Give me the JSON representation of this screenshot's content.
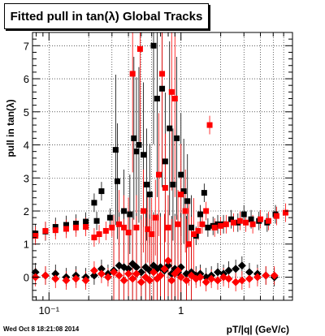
{
  "title": "Fitted pull in tan(λ)  Global Tracks",
  "timestamp": "Wed Oct  8 18:21:08 2014",
  "chart_data": {
    "type": "scatter",
    "xlabel": "pT/|q| (GeV/c)",
    "ylabel": "pull in tan(λ)",
    "xscale": "log",
    "xlim": [
      0.075,
      7.0
    ],
    "ylim": [
      -0.7,
      7.4
    ],
    "grid": true,
    "x_tick_labels": [
      "10⁻¹",
      "1"
    ],
    "y_tick_labels": [
      "0",
      "1",
      "2",
      "3",
      "4",
      "5",
      "6",
      "7"
    ],
    "colors": {
      "black_series": "#000000",
      "red_series": "#ff0000"
    },
    "series": [
      {
        "marker": "square",
        "color": "#000000",
        "values": [
          [
            0.079,
            1.32
          ],
          [
            0.094,
            1.38
          ],
          [
            0.112,
            1.52
          ],
          [
            0.135,
            1.58
          ],
          [
            0.16,
            1.62
          ],
          [
            0.19,
            1.68
          ],
          [
            0.22,
            2.25
          ],
          [
            0.23,
            1.7
          ],
          [
            0.25,
            2.6
          ],
          [
            0.29,
            1.8
          ],
          [
            0.32,
            3.85
          ],
          [
            0.33,
            2.9
          ],
          [
            0.37,
            2.0
          ],
          [
            0.41,
            1.9
          ],
          [
            0.44,
            4.2
          ],
          [
            0.46,
            3.8
          ],
          [
            0.48,
            4.0
          ],
          [
            0.52,
            3.7
          ],
          [
            0.55,
            2.8
          ],
          [
            0.58,
            2.5
          ],
          [
            0.62,
            7.0
          ],
          [
            0.66,
            5.4
          ],
          [
            0.72,
            5.7
          ],
          [
            0.76,
            3.5
          ],
          [
            0.82,
            4.5
          ],
          [
            0.87,
            2.8
          ],
          [
            0.93,
            4.2
          ],
          [
            1.0,
            3.1
          ],
          [
            1.05,
            2.6
          ],
          [
            1.12,
            2.3
          ],
          [
            1.2,
            1.5
          ],
          [
            1.3,
            1.25
          ],
          [
            1.4,
            1.9
          ],
          [
            1.5,
            2.55
          ],
          [
            1.6,
            1.5
          ],
          [
            1.75,
            1.55
          ],
          [
            1.9,
            1.6
          ],
          [
            2.1,
            1.6
          ],
          [
            2.4,
            1.75
          ],
          [
            2.7,
            1.65
          ],
          [
            3.0,
            1.9
          ],
          [
            3.4,
            1.75
          ],
          [
            3.9,
            1.7
          ],
          [
            4.5,
            1.65
          ],
          [
            5.2,
            1.9
          ]
        ]
      },
      {
        "marker": "square",
        "color": "#ff0000",
        "values": [
          [
            0.079,
            1.25
          ],
          [
            0.094,
            1.4
          ],
          [
            0.112,
            1.42
          ],
          [
            0.135,
            1.46
          ],
          [
            0.16,
            1.5
          ],
          [
            0.19,
            1.52
          ],
          [
            0.22,
            1.2
          ],
          [
            0.24,
            1.3
          ],
          [
            0.27,
            1.4
          ],
          [
            0.3,
            1.5
          ],
          [
            0.34,
            1.6
          ],
          [
            0.37,
            1.5
          ],
          [
            0.4,
            1.35
          ],
          [
            0.43,
            6.15
          ],
          [
            0.46,
            1.5
          ],
          [
            0.49,
            6.9
          ],
          [
            0.52,
            2.0
          ],
          [
            0.56,
            1.45
          ],
          [
            0.6,
            1.3
          ],
          [
            0.64,
            1.8
          ],
          [
            0.68,
            3.1
          ],
          [
            0.72,
            6.15
          ],
          [
            0.76,
            2.7
          ],
          [
            0.8,
            1.5
          ],
          [
            0.85,
            5.6
          ],
          [
            0.9,
            5.4
          ],
          [
            0.95,
            1.6
          ],
          [
            1.0,
            2.5
          ],
          [
            1.08,
            2.0
          ],
          [
            1.15,
            1.0
          ],
          [
            1.25,
            1.3
          ],
          [
            1.35,
            1.4
          ],
          [
            1.45,
            1.6
          ],
          [
            1.55,
            2.0
          ],
          [
            1.65,
            4.6
          ],
          [
            1.8,
            1.5
          ],
          [
            2.0,
            1.55
          ],
          [
            2.2,
            1.6
          ],
          [
            2.5,
            1.65
          ],
          [
            2.8,
            1.7
          ],
          [
            3.1,
            1.65
          ],
          [
            3.5,
            1.6
          ],
          [
            4.0,
            1.75
          ],
          [
            4.6,
            1.7
          ],
          [
            5.3,
            1.85
          ],
          [
            6.2,
            1.95
          ]
        ]
      },
      {
        "marker": "diamond",
        "color": "#000000",
        "values": [
          [
            0.079,
            0.15
          ],
          [
            0.094,
            0.05
          ],
          [
            0.112,
            0.1
          ],
          [
            0.135,
            0.0
          ],
          [
            0.16,
            0.05
          ],
          [
            0.19,
            0.0
          ],
          [
            0.22,
            0.05
          ],
          [
            0.25,
            0.25
          ],
          [
            0.28,
            0.1
          ],
          [
            0.31,
            0.2
          ],
          [
            0.34,
            0.35
          ],
          [
            0.37,
            0.3
          ],
          [
            0.4,
            0.25
          ],
          [
            0.43,
            0.4
          ],
          [
            0.46,
            0.3
          ],
          [
            0.5,
            0.15
          ],
          [
            0.54,
            0.3
          ],
          [
            0.58,
            0.2
          ],
          [
            0.62,
            0.35
          ],
          [
            0.66,
            0.25
          ],
          [
            0.7,
            0.3
          ],
          [
            0.75,
            0.2
          ],
          [
            0.8,
            0.35
          ],
          [
            0.85,
            0.1
          ],
          [
            0.9,
            0.25
          ],
          [
            0.95,
            0.15
          ],
          [
            1.0,
            0.3
          ],
          [
            1.1,
            0.1
          ],
          [
            1.2,
            0.15
          ],
          [
            1.3,
            0.05
          ],
          [
            1.4,
            0.1
          ],
          [
            1.55,
            0.0
          ],
          [
            1.7,
            0.05
          ],
          [
            1.9,
            0.15
          ],
          [
            2.1,
            0.1
          ],
          [
            2.3,
            0.2
          ],
          [
            2.6,
            0.25
          ],
          [
            2.9,
            0.35
          ],
          [
            3.3,
            0.15
          ],
          [
            3.8,
            0.1
          ],
          [
            4.4,
            0.05
          ],
          [
            5.1,
            0.0
          ]
        ]
      },
      {
        "marker": "diamond",
        "color": "#ff0000",
        "values": [
          [
            0.079,
            0.0
          ],
          [
            0.094,
            0.05
          ],
          [
            0.112,
            -0.05
          ],
          [
            0.135,
            -0.1
          ],
          [
            0.16,
            -0.05
          ],
          [
            0.19,
            -0.1
          ],
          [
            0.22,
            0.2
          ],
          [
            0.25,
            0.1
          ],
          [
            0.28,
            0.0
          ],
          [
            0.31,
            0.15
          ],
          [
            0.34,
            0.05
          ],
          [
            0.37,
            -0.1
          ],
          [
            0.4,
            0.1
          ],
          [
            0.43,
            -0.05
          ],
          [
            0.46,
            0.1
          ],
          [
            0.5,
            -0.15
          ],
          [
            0.54,
            0.0
          ],
          [
            0.58,
            -0.1
          ],
          [
            0.62,
            0.15
          ],
          [
            0.66,
            -0.05
          ],
          [
            0.7,
            0.05
          ],
          [
            0.75,
            0.25
          ],
          [
            0.8,
            0.5
          ],
          [
            0.85,
            -0.1
          ],
          [
            0.9,
            0.1
          ],
          [
            0.95,
            0.2
          ],
          [
            1.0,
            0.0
          ],
          [
            1.1,
            -0.1
          ],
          [
            1.2,
            0.05
          ],
          [
            1.3,
            -0.05
          ],
          [
            1.4,
            0.0
          ],
          [
            1.55,
            -0.15
          ],
          [
            1.7,
            -0.05
          ],
          [
            1.9,
            -0.1
          ],
          [
            2.1,
            0.0
          ],
          [
            2.3,
            -0.05
          ],
          [
            2.6,
            -0.15
          ],
          [
            2.9,
            -0.1
          ],
          [
            3.3,
            -0.05
          ],
          [
            3.8,
            0.0
          ],
          [
            4.4,
            0.05
          ],
          [
            5.1,
            0.05
          ]
        ]
      }
    ]
  }
}
